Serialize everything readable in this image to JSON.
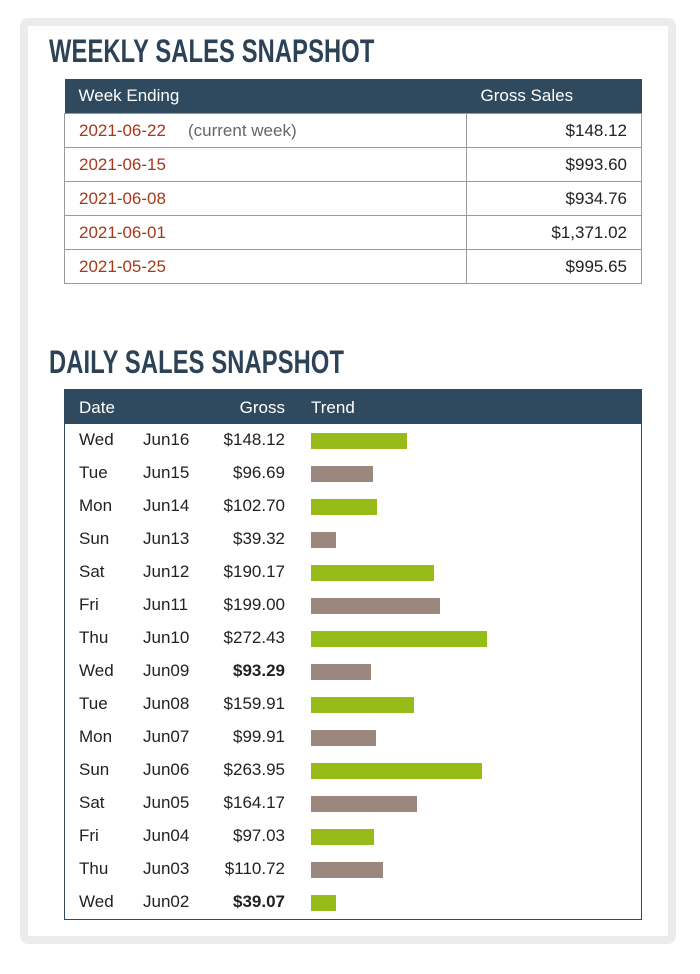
{
  "weekly": {
    "title": "WEEKLY SALES SNAPSHOT",
    "headers": {
      "week": "Week Ending",
      "gross": "Gross Sales"
    },
    "rows": [
      {
        "date": "2021-06-22",
        "note": "(current week)",
        "gross": "$148.12"
      },
      {
        "date": "2021-06-15",
        "note": "",
        "gross": "$993.60"
      },
      {
        "date": "2021-06-08",
        "note": "",
        "gross": "$934.76"
      },
      {
        "date": "2021-06-01",
        "note": "",
        "gross": "$1,371.02"
      },
      {
        "date": "2021-05-25",
        "note": "",
        "gross": "$995.65"
      }
    ]
  },
  "daily": {
    "title": "DAILY SALES SNAPSHOT",
    "headers": {
      "date": "Date",
      "gross": "Gross",
      "trend": "Trend"
    },
    "colors": {
      "up": "#97bb18",
      "down": "#9b877d"
    },
    "rows": [
      {
        "dow": "Wed",
        "md": "Jun16",
        "gross": "$148.12",
        "value": 148.12,
        "bold": false,
        "trend": "up"
      },
      {
        "dow": "Tue",
        "md": "Jun15",
        "gross": "$96.69",
        "value": 96.69,
        "bold": false,
        "trend": "down"
      },
      {
        "dow": "Mon",
        "md": "Jun14",
        "gross": "$102.70",
        "value": 102.7,
        "bold": false,
        "trend": "up"
      },
      {
        "dow": "Sun",
        "md": "Jun13",
        "gross": "$39.32",
        "value": 39.32,
        "bold": false,
        "trend": "down"
      },
      {
        "dow": "Sat",
        "md": "Jun12",
        "gross": "$190.17",
        "value": 190.17,
        "bold": false,
        "trend": "up"
      },
      {
        "dow": "Fri",
        "md": "Jun11",
        "gross": "$199.00",
        "value": 199.0,
        "bold": false,
        "trend": "down"
      },
      {
        "dow": "Thu",
        "md": "Jun10",
        "gross": "$272.43",
        "value": 272.43,
        "bold": false,
        "trend": "up"
      },
      {
        "dow": "Wed",
        "md": "Jun09",
        "gross": "$93.29",
        "value": 93.29,
        "bold": true,
        "trend": "down"
      },
      {
        "dow": "Tue",
        "md": "Jun08",
        "gross": "$159.91",
        "value": 159.91,
        "bold": false,
        "trend": "up"
      },
      {
        "dow": "Mon",
        "md": "Jun07",
        "gross": "$99.91",
        "value": 99.91,
        "bold": false,
        "trend": "down"
      },
      {
        "dow": "Sun",
        "md": "Jun06",
        "gross": "$263.95",
        "value": 263.95,
        "bold": false,
        "trend": "up"
      },
      {
        "dow": "Sat",
        "md": "Jun05",
        "gross": "$164.17",
        "value": 164.17,
        "bold": false,
        "trend": "down"
      },
      {
        "dow": "Fri",
        "md": "Jun04",
        "gross": "$97.03",
        "value": 97.03,
        "bold": false,
        "trend": "up"
      },
      {
        "dow": "Thu",
        "md": "Jun03",
        "gross": "$110.72",
        "value": 110.72,
        "bold": false,
        "trend": "down"
      },
      {
        "dow": "Wed",
        "md": "Jun02",
        "gross": "$39.07",
        "value": 39.07,
        "bold": true,
        "trend": "up"
      }
    ]
  }
}
